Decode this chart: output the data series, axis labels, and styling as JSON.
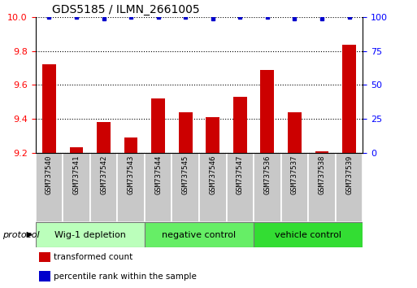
{
  "title": "GDS5185 / ILMN_2661005",
  "samples": [
    "GSM737540",
    "GSM737541",
    "GSM737542",
    "GSM737543",
    "GSM737544",
    "GSM737545",
    "GSM737546",
    "GSM737547",
    "GSM737536",
    "GSM737537",
    "GSM737538",
    "GSM737539"
  ],
  "red_values": [
    9.72,
    9.23,
    9.38,
    9.29,
    9.52,
    9.44,
    9.41,
    9.53,
    9.69,
    9.44,
    9.21,
    9.84
  ],
  "blue_values": [
    100,
    100,
    99,
    100,
    100,
    100,
    99,
    100,
    100,
    99,
    99,
    100
  ],
  "ylim_left": [
    9.2,
    10.0
  ],
  "ylim_right": [
    0,
    100
  ],
  "yticks_left": [
    9.2,
    9.4,
    9.6,
    9.8,
    10.0
  ],
  "yticks_right": [
    0,
    25,
    50,
    75,
    100
  ],
  "groups": [
    {
      "label": "Wig-1 depletion",
      "indices": [
        0,
        1,
        2,
        3
      ],
      "color": "#bbffbb"
    },
    {
      "label": "negative control",
      "indices": [
        4,
        5,
        6,
        7
      ],
      "color": "#66ee66"
    },
    {
      "label": "vehicle control",
      "indices": [
        8,
        9,
        10,
        11
      ],
      "color": "#33dd33"
    }
  ],
  "bar_color": "#cc0000",
  "dot_color": "#0000cc",
  "bar_width": 0.5,
  "protocol_label": "protocol",
  "legend_items": [
    {
      "color": "#cc0000",
      "label": "transformed count"
    },
    {
      "color": "#0000cc",
      "label": "percentile rank within the sample"
    }
  ],
  "background_color": "#ffffff",
  "sample_box_color": "#c8c8c8",
  "grid_style": "dotted"
}
